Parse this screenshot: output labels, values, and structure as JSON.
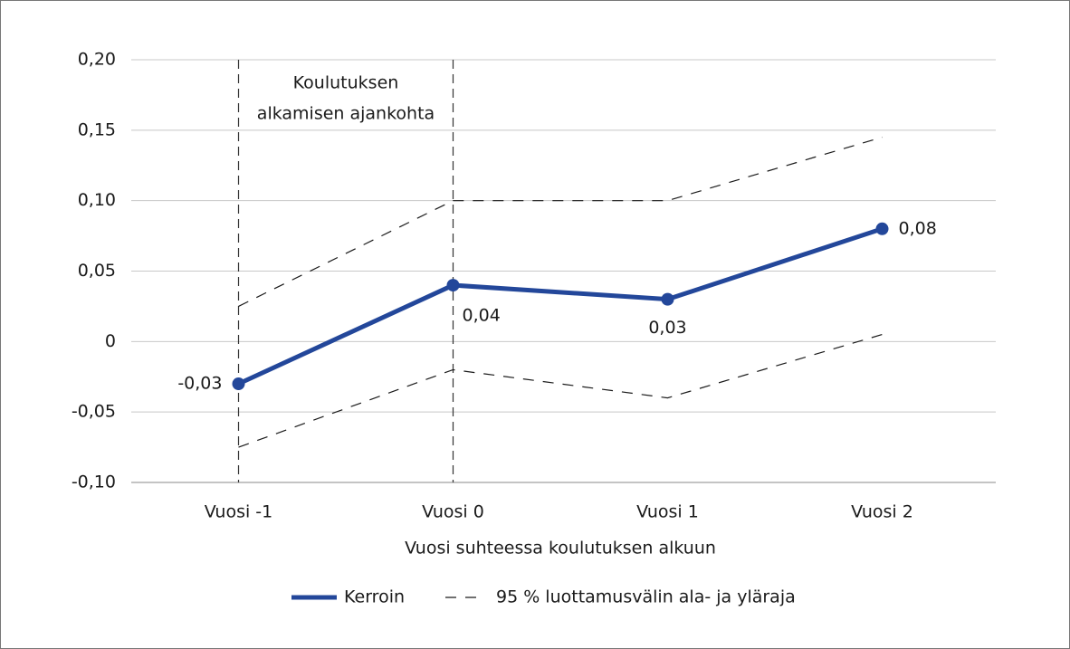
{
  "chart_data": {
    "type": "line",
    "categories": [
      "Vuosi -1",
      "Vuosi 0",
      "Vuosi 1",
      "Vuosi 2"
    ],
    "series": [
      {
        "name": "Kerroin",
        "color": "#23479a",
        "values": [
          -0.03,
          0.04,
          0.03,
          0.08
        ],
        "value_labels": [
          "-0,03",
          "0,04",
          "0,03",
          "0,08"
        ]
      }
    ],
    "confidence_interval": {
      "name": "95 % luottamusvälin ala- ja yläraja",
      "color": "#1a1a1a",
      "lower": [
        -0.075,
        -0.02,
        -0.04,
        0.005
      ],
      "upper": [
        0.025,
        0.1,
        0.1,
        0.145
      ]
    },
    "annotation": [
      "Koulutuksen",
      "alkamisen ajankohta"
    ],
    "x_label": "Vuosi suhteessa koulutuksen alkuun",
    "ylim": [
      -0.1,
      0.2
    ],
    "yticks": [
      {
        "value": -0.1,
        "label": "-0,10"
      },
      {
        "value": -0.05,
        "label": "-0,05"
      },
      0,
      {
        "value": 0.05,
        "label": "0,05"
      },
      {
        "value": 0.1,
        "label": "0,10"
      },
      {
        "value": 0.15,
        "label": "0,15"
      },
      {
        "value": 0.2,
        "label": "0,20"
      }
    ],
    "grid": true
  }
}
